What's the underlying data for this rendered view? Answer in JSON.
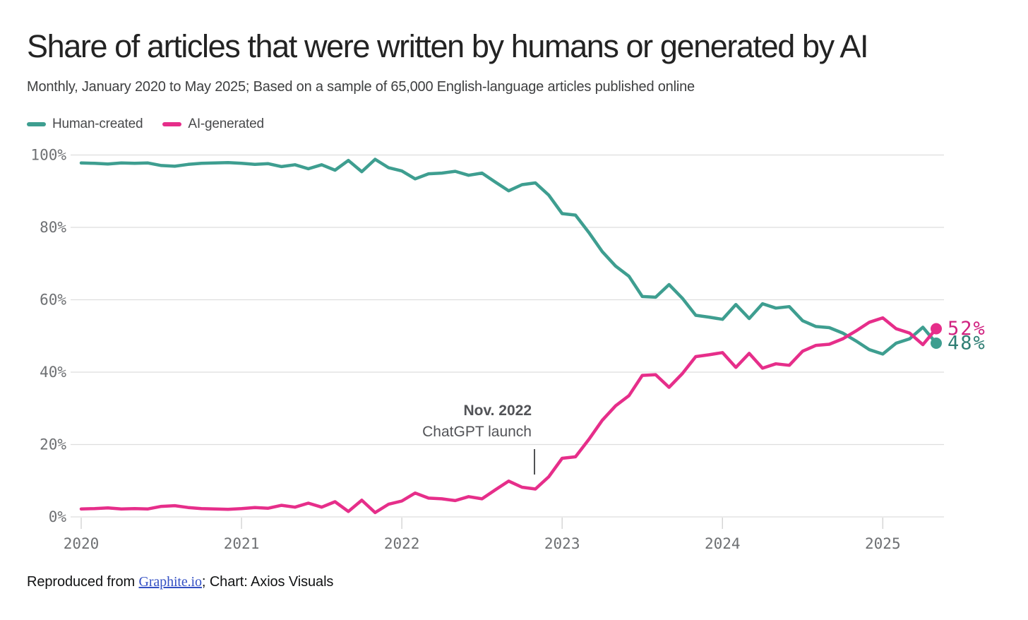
{
  "title": "Share of articles that were written by humans or generated by AI",
  "subtitle": "Monthly, January 2020 to May 2025; Based on a sample of 65,000 English-language articles published online",
  "legend": [
    {
      "label": "Human-created",
      "color": "#3E9E90"
    },
    {
      "label": "AI-generated",
      "color": "#E62E8A"
    }
  ],
  "annotation": {
    "line1": "Nov. 2022",
    "line2": "ChatGPT launch",
    "month_index": 34
  },
  "footer": {
    "prefix": "Reproduced from ",
    "link": "Graphite.io",
    "suffix": "; Chart: Axios Visuals"
  },
  "colors": {
    "human_line": "#3E9E90",
    "ai_line": "#E62E8A",
    "human_end_label": "#2F7E74",
    "ai_end_label": "#D02280",
    "gridline": "#DEDEDE",
    "axis_tick": "#D6D6D6",
    "axis_label": "#6E7073",
    "annotation_text": "#525357",
    "link_blue": "#3450C4"
  },
  "chart_data": {
    "type": "line",
    "title": "Share of articles that were written by humans or generated by AI",
    "x_unit": "month",
    "x_start": "2020-01",
    "x_end": "2025-05",
    "n_points": 65,
    "x_tick_labels": [
      "2020",
      "2021",
      "2022",
      "2023",
      "2024",
      "2025"
    ],
    "x_tick_month_indices": [
      0,
      12,
      24,
      36,
      48,
      60
    ],
    "y_tick_labels": [
      "0%",
      "20%",
      "40%",
      "60%",
      "80%",
      "100%"
    ],
    "y_tick_values": [
      0,
      20,
      40,
      60,
      80,
      100
    ],
    "ylim": [
      0,
      100
    ],
    "grid": "horizontal",
    "legend_position": "top-left",
    "annotation": {
      "label": "Nov. 2022 ChatGPT launch",
      "x": "2022-11"
    },
    "series": [
      {
        "name": "Human-created",
        "color": "#3E9E90",
        "end_label": "48%",
        "end_value": 48,
        "values": [
          97.8,
          97.7,
          97.5,
          97.8,
          97.7,
          97.8,
          97.1,
          96.9,
          97.4,
          97.7,
          97.8,
          97.9,
          97.7,
          97.4,
          97.6,
          96.8,
          97.3,
          96.2,
          97.3,
          95.8,
          98.5,
          95.4,
          98.8,
          96.5,
          95.6,
          93.4,
          94.8,
          95.0,
          95.5,
          94.4,
          95.0,
          92.5,
          90.1,
          91.8,
          92.3,
          88.9,
          83.8,
          83.4,
          78.6,
          73.3,
          69.3,
          66.5,
          60.9,
          60.7,
          64.2,
          60.4,
          55.7,
          55.2,
          54.6,
          58.7,
          54.8,
          58.9,
          57.7,
          58.1,
          54.2,
          52.6,
          52.3,
          50.8,
          48.6,
          46.2,
          45.0,
          48.0,
          49.2,
          52.4,
          48.0
        ]
      },
      {
        "name": "AI-generated",
        "color": "#E62E8A",
        "end_label": "52%",
        "end_value": 52,
        "values": [
          2.2,
          2.3,
          2.5,
          2.2,
          2.3,
          2.2,
          2.9,
          3.1,
          2.6,
          2.3,
          2.2,
          2.1,
          2.3,
          2.6,
          2.4,
          3.2,
          2.7,
          3.8,
          2.7,
          4.2,
          1.5,
          4.6,
          1.2,
          3.5,
          4.4,
          6.6,
          5.2,
          5.0,
          4.5,
          5.6,
          5.0,
          7.5,
          9.9,
          8.2,
          7.7,
          11.1,
          16.2,
          16.6,
          21.4,
          26.7,
          30.7,
          33.5,
          39.1,
          39.3,
          35.8,
          39.6,
          44.3,
          44.8,
          45.4,
          41.3,
          45.2,
          41.1,
          42.3,
          41.9,
          45.8,
          47.4,
          47.7,
          49.2,
          51.4,
          53.8,
          55.0,
          52.0,
          50.8,
          47.6,
          52.0
        ]
      }
    ]
  }
}
